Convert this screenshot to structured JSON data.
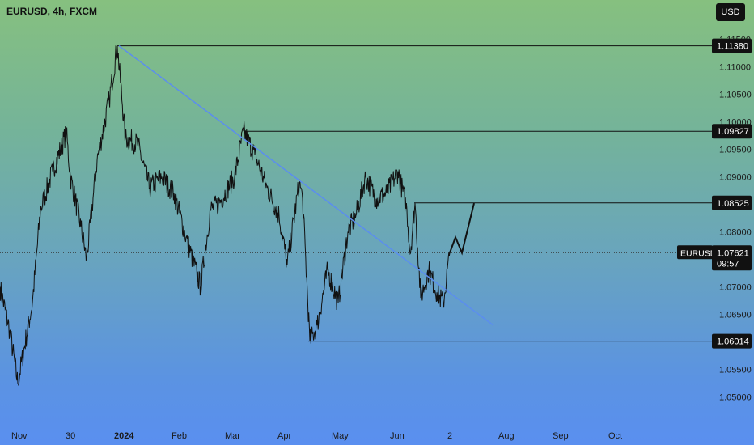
{
  "header": {
    "symbol": "EURUSD, 4h, FXCM"
  },
  "currency_button": "USD",
  "chart_data": {
    "type": "line",
    "symbol": "EURUSD",
    "timeframe": "4h",
    "source": "FXCM",
    "x_ticks": [
      "Nov",
      "30",
      "2024",
      "Feb",
      "Mar",
      "Apr",
      "May",
      "Jun",
      "2",
      "Aug",
      "Sep",
      "Oct"
    ],
    "y_ticks": [
      "1.11500",
      "1.11000",
      "1.10500",
      "1.10000",
      "1.09500",
      "1.09000",
      "1.08000",
      "1.07000",
      "1.06500",
      "1.05500",
      "1.05000"
    ],
    "ylim": [
      1.0495,
      1.1155
    ],
    "price_anchors": [
      [
        "Nov",
        1.068
      ],
      [
        "30",
        1.092
      ],
      [
        "2024",
        1.1138
      ],
      [
        "Feb",
        1.079
      ],
      [
        "Mar",
        1.0983
      ],
      [
        "Apr",
        1.0601
      ],
      [
        "May",
        1.081
      ],
      [
        "Jun",
        1.091
      ],
      [
        "2",
        1.068
      ],
      [
        "2",
        1.0762
      ]
    ],
    "levels": [
      {
        "label": "1.11380",
        "value": 1.1138
      },
      {
        "label": "1.09827",
        "value": 1.09827
      },
      {
        "label": "1.08525",
        "value": 1.08525
      },
      {
        "label": "1.06014",
        "value": 1.06014
      }
    ],
    "current_price": {
      "symbol_label": "EURUSD",
      "value": "1.07621",
      "countdown": "09:57"
    },
    "trendline": {
      "from": [
        "2024",
        1.1138
      ],
      "to": [
        "Jul",
        1.063
      ]
    },
    "projection": [
      [
        "2",
        1.0762
      ],
      [
        "2",
        1.079
      ],
      [
        "2",
        1.0762
      ],
      [
        "2",
        1.0852
      ]
    ],
    "colors": {
      "price": "#111111",
      "trendline": "#5b8def",
      "level": "#111111",
      "label_bg": "#111111",
      "label_fg": "#ffffff"
    }
  }
}
